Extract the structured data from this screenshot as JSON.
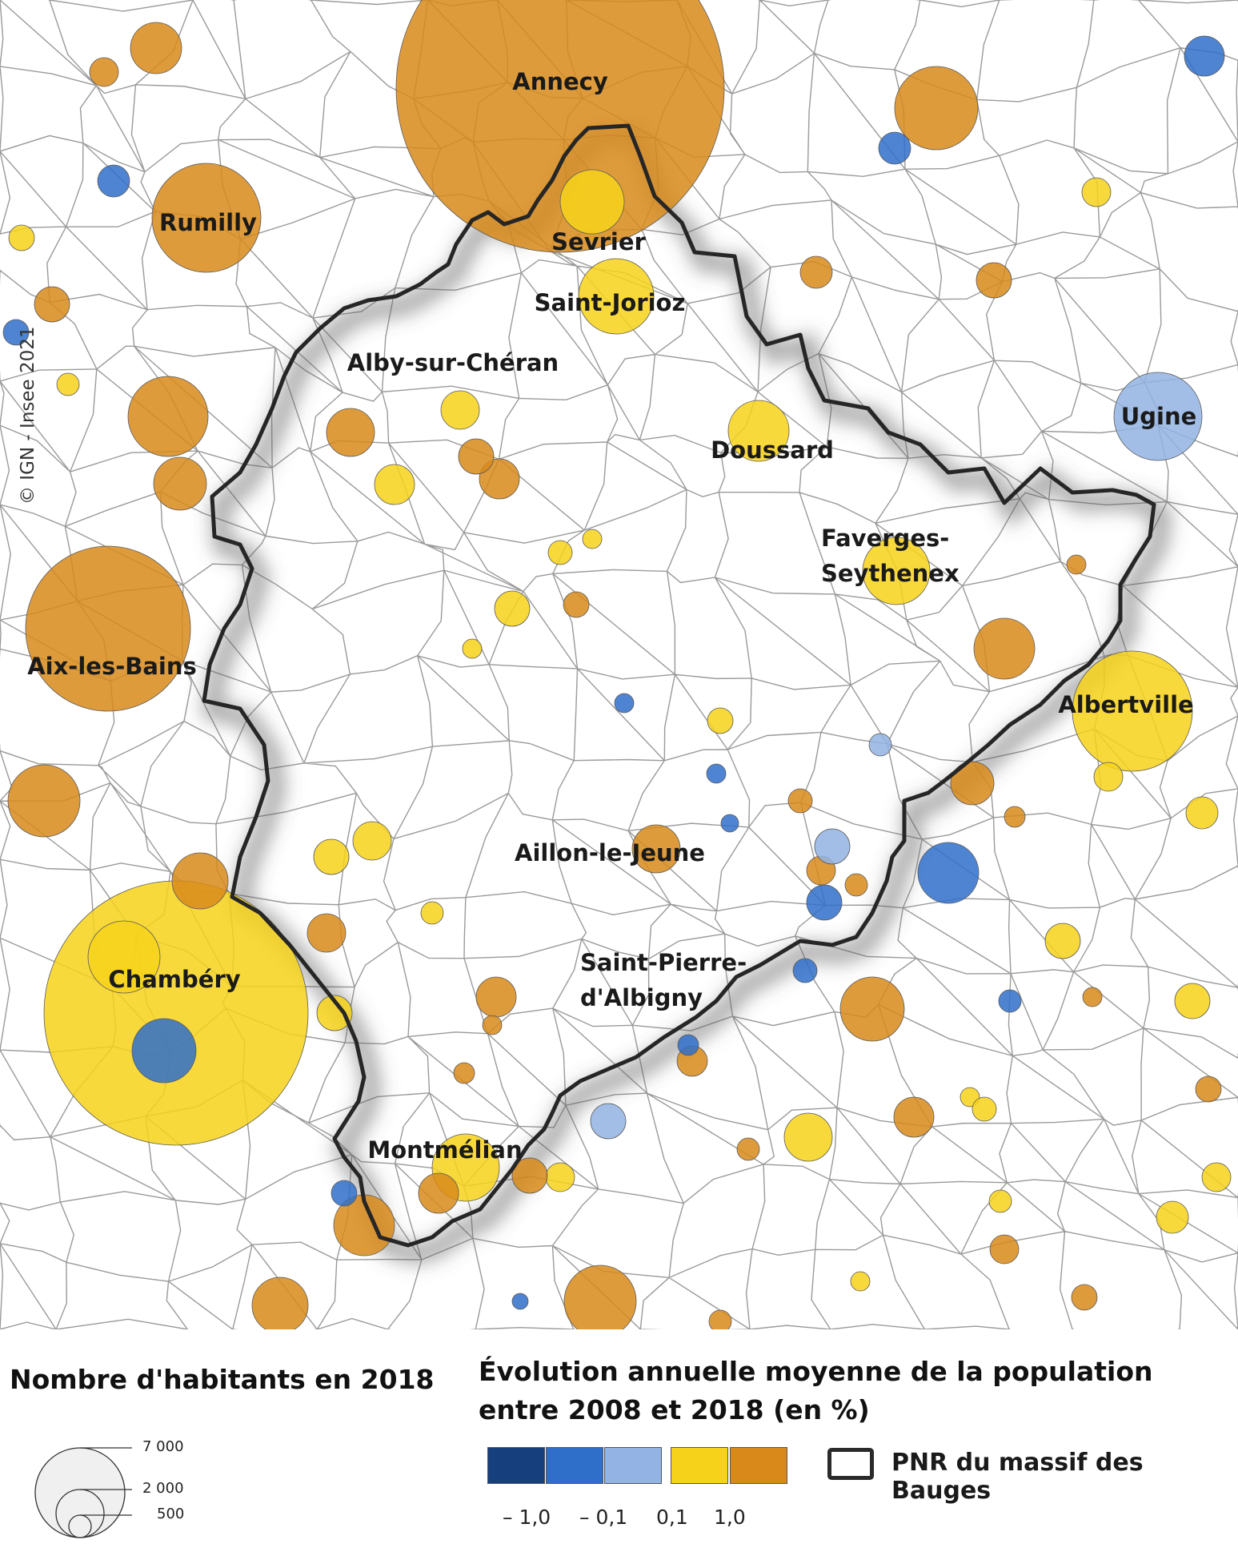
{
  "map": {
    "credit": "© IGN - Insee 2021",
    "places": {
      "annecy": "Annecy",
      "rumilly": "Rumilly",
      "sevrier": "Sevrier",
      "saint_jorioz": "Saint-Jorioz",
      "alby": "Alby-sur-Chéran",
      "doussard": "Doussard",
      "ugine": "Ugine",
      "faverges_1": "Faverges-",
      "faverges_2": "Seythenex",
      "aix": "Aix-les-Bains",
      "albertville": "Albertville",
      "aillon": "Aillon-le-Jeune",
      "chambery": "Chambéry",
      "spa_1": "Saint-Pierre-",
      "spa_2": "d'Albigny",
      "montmelian": "Montmélian"
    }
  },
  "legend": {
    "size_title": "Nombre d'habitants en 2018",
    "size_values": [
      "7 000",
      "2 000",
      "500"
    ],
    "color_title_1": "Évolution annuelle moyenne de la population",
    "color_title_2": "entre 2008 et 2018 (en %)",
    "classes": [
      {
        "color": "#163f7e"
      },
      {
        "color": "#2f6ec9"
      },
      {
        "color": "#92b3e3"
      },
      {
        "color": "#f7d21a"
      },
      {
        "color": "#d8891a"
      }
    ],
    "breaks": [
      "– 1,0",
      "– 0,1",
      "0,1",
      "1,0"
    ],
    "pnr_label": "PNR du massif des Bauges"
  }
}
